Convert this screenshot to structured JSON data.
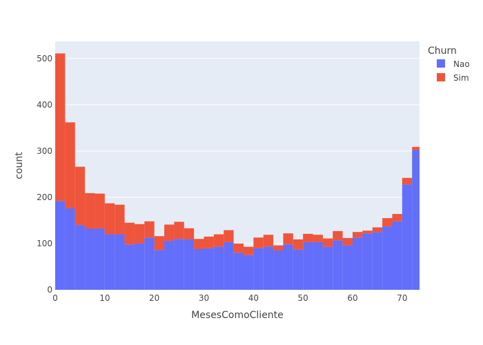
{
  "chart_data": {
    "type": "bar",
    "barmode": "stack",
    "xlabel": "MesesComoCliente",
    "ylabel": "count",
    "xlim": [
      0,
      73.5
    ],
    "ylim": [
      0,
      537
    ],
    "bin_width": 2,
    "x_ticks": [
      0,
      10,
      20,
      30,
      40,
      50,
      60,
      70
    ],
    "y_ticks": [
      0,
      100,
      200,
      300,
      400,
      500
    ],
    "grid": true,
    "legend_title": "Churn",
    "legend_position": "top-right",
    "bin_starts": [
      0,
      2,
      4,
      6,
      8,
      10,
      12,
      14,
      16,
      18,
      20,
      22,
      24,
      26,
      28,
      30,
      32,
      34,
      36,
      38,
      40,
      42,
      44,
      46,
      48,
      50,
      52,
      54,
      56,
      58,
      60,
      62,
      64,
      66,
      68,
      70,
      72
    ],
    "series": [
      {
        "name": "Nao",
        "color": "#636efa",
        "values": [
          192,
          176,
          140,
          132,
          132,
          120,
          120,
          98,
          100,
          113,
          86,
          106,
          110,
          109,
          88,
          90,
          93,
          103,
          80,
          75,
          90,
          93,
          85,
          98,
          87,
          103,
          103,
          93,
          107,
          96,
          113,
          122,
          125,
          137,
          148,
          228,
          302
        ]
      },
      {
        "name": "Sim",
        "color": "#ef553b",
        "values": [
          319,
          186,
          126,
          77,
          76,
          67,
          64,
          47,
          42,
          35,
          30,
          35,
          37,
          24,
          22,
          25,
          27,
          26,
          20,
          18,
          23,
          26,
          11,
          24,
          22,
          18,
          16,
          18,
          20,
          16,
          12,
          6,
          10,
          18,
          16,
          14,
          7
        ]
      }
    ]
  }
}
